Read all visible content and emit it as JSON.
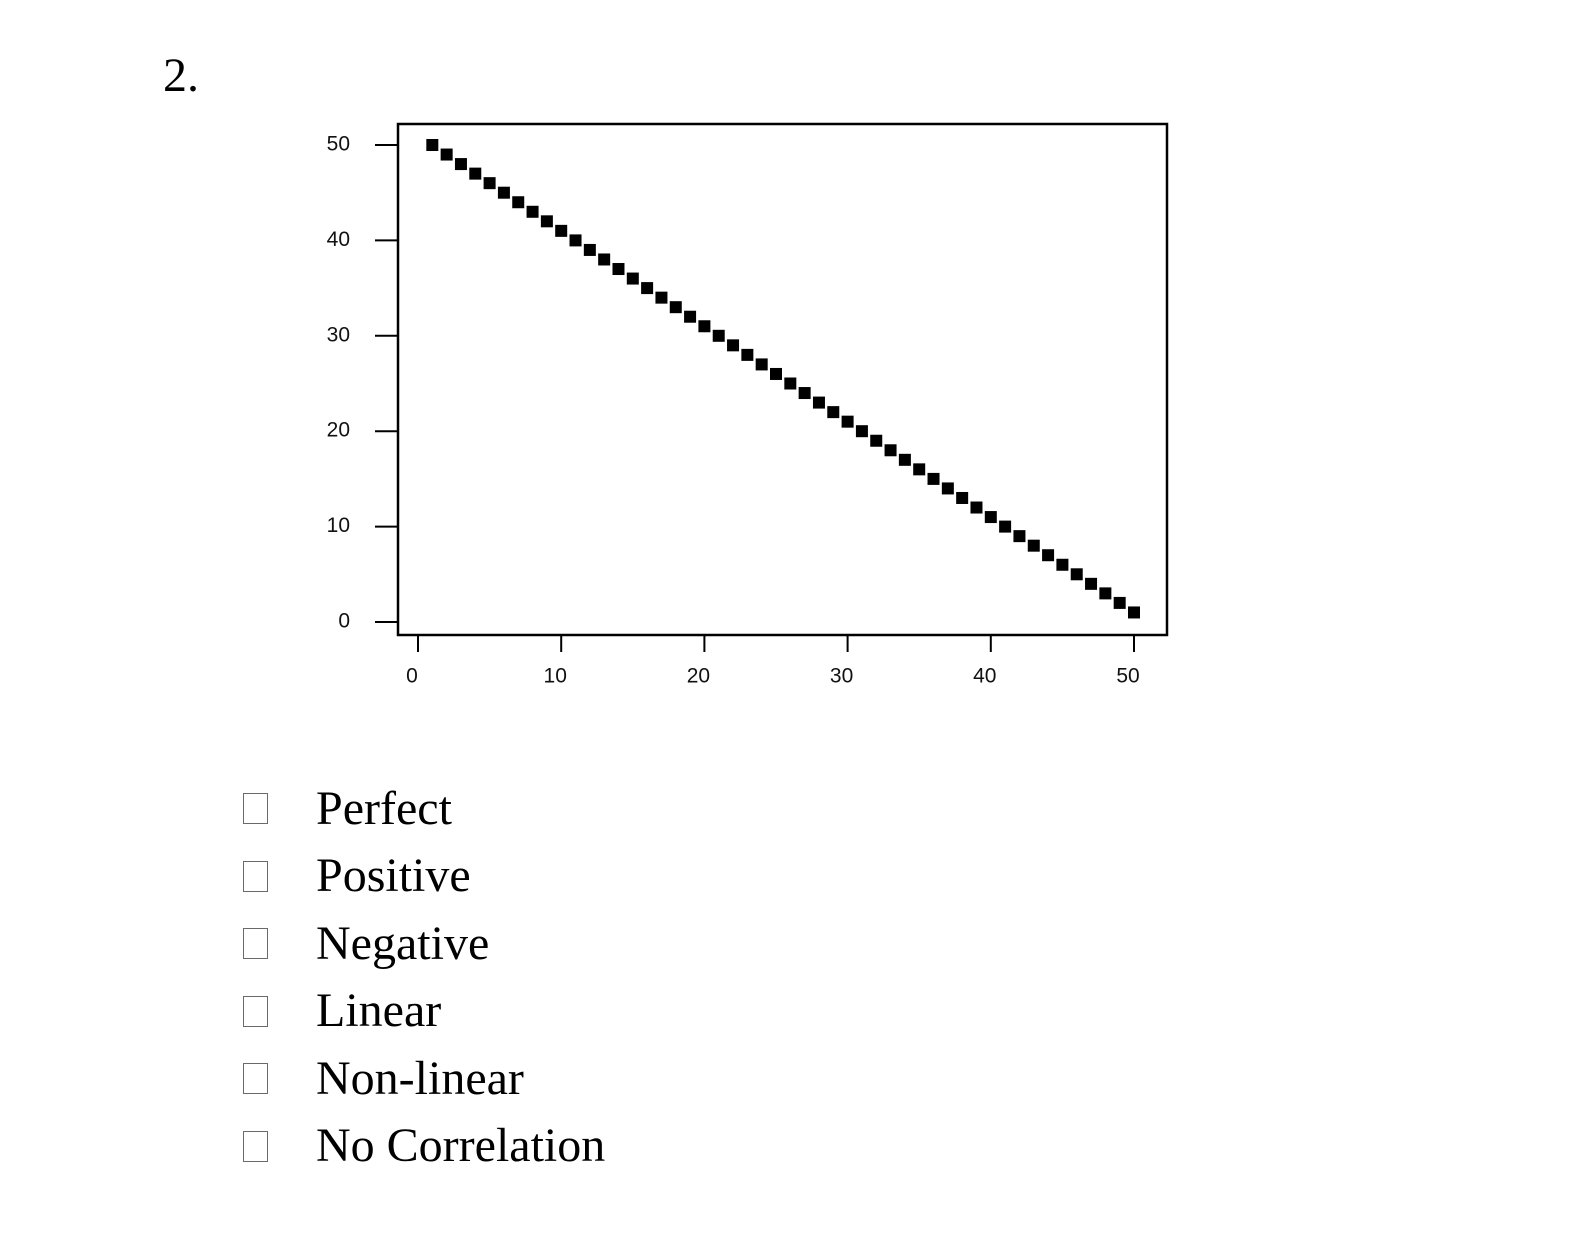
{
  "question": {
    "number": "2."
  },
  "chart_data": {
    "type": "scatter",
    "title": "",
    "xlabel": "",
    "ylabel": "",
    "xlim": [
      0,
      50
    ],
    "ylim": [
      0,
      50
    ],
    "xticks": [
      "0",
      "10",
      "20",
      "30",
      "40",
      "50"
    ],
    "yticks": [
      "0",
      "10",
      "20",
      "30",
      "40",
      "50"
    ],
    "grid": false,
    "marker": "square",
    "marker_color": "#000000",
    "series": [
      {
        "x": [
          1,
          2,
          3,
          4,
          5,
          6,
          7,
          8,
          9,
          10,
          11,
          12,
          13,
          14,
          15,
          16,
          17,
          18,
          19,
          20,
          21,
          22,
          23,
          24,
          25,
          26,
          27,
          28,
          29,
          30,
          31,
          32,
          33,
          34,
          35,
          36,
          37,
          38,
          39,
          40,
          41,
          42,
          43,
          44,
          45,
          46,
          47,
          48,
          49,
          50
        ],
        "y": [
          50,
          49,
          48,
          47,
          46,
          45,
          44,
          43,
          42,
          41,
          40,
          39,
          38,
          37,
          36,
          35,
          34,
          33,
          32,
          31,
          30,
          29,
          28,
          27,
          26,
          25,
          24,
          23,
          22,
          21,
          20,
          19,
          18,
          17,
          16,
          15,
          14,
          13,
          12,
          11,
          10,
          9,
          8,
          7,
          6,
          5,
          4,
          3,
          2,
          1
        ]
      }
    ]
  },
  "options": [
    {
      "label": "Perfect"
    },
    {
      "label": "Positive"
    },
    {
      "label": "Negative"
    },
    {
      "label": "Linear"
    },
    {
      "label": "Non-linear"
    },
    {
      "label": "No Correlation"
    }
  ]
}
